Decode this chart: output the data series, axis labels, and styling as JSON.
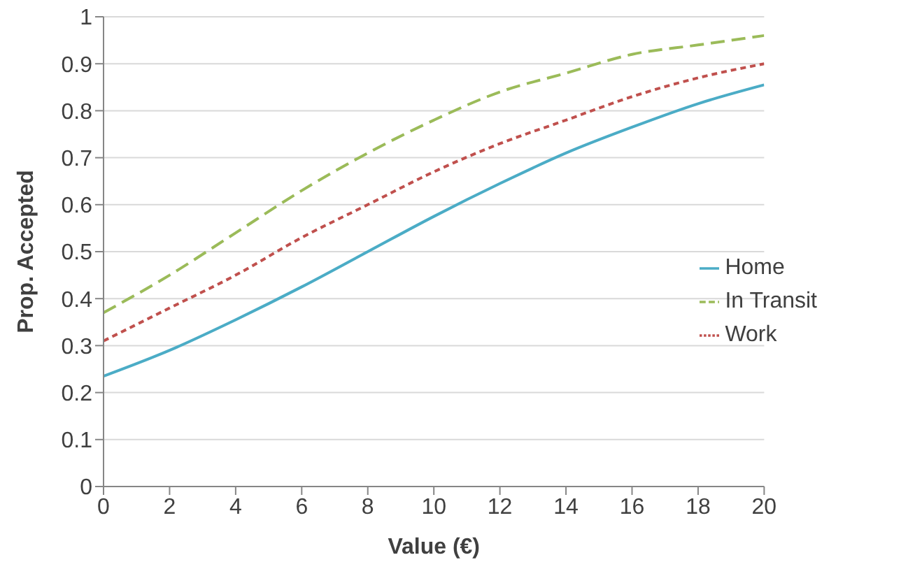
{
  "chart_data": {
    "type": "line",
    "xlabel": "Value (€)",
    "ylabel": "Prop. Accepted",
    "x": [
      0,
      2,
      4,
      6,
      8,
      10,
      12,
      14,
      16,
      18,
      20
    ],
    "series": [
      {
        "name": "In Transit",
        "color": "#9bbb59",
        "line_style": "dashed",
        "values": [
          0.37,
          0.45,
          0.54,
          0.63,
          0.71,
          0.78,
          0.84,
          0.88,
          0.92,
          0.94,
          0.96
        ]
      },
      {
        "name": "Work",
        "color": "#c0504d",
        "line_style": "dotted",
        "values": [
          0.31,
          0.38,
          0.45,
          0.53,
          0.6,
          0.67,
          0.73,
          0.78,
          0.83,
          0.87,
          0.9
        ]
      },
      {
        "name": "Home",
        "color": "#4bacc6",
        "line_style": "solid",
        "values": [
          0.235,
          0.29,
          0.355,
          0.425,
          0.5,
          0.575,
          0.645,
          0.71,
          0.765,
          0.815,
          0.855
        ]
      }
    ],
    "xlim": [
      0,
      20
    ],
    "xticks": [
      0,
      2,
      4,
      6,
      8,
      10,
      12,
      14,
      16,
      18,
      20
    ],
    "ylim": [
      0,
      1
    ],
    "yticks": [
      0,
      0.1,
      0.2,
      0.3,
      0.4,
      0.5,
      0.6,
      0.7,
      0.8,
      0.9,
      1
    ],
    "grid": "y",
    "legend": "right",
    "marker": "none"
  }
}
